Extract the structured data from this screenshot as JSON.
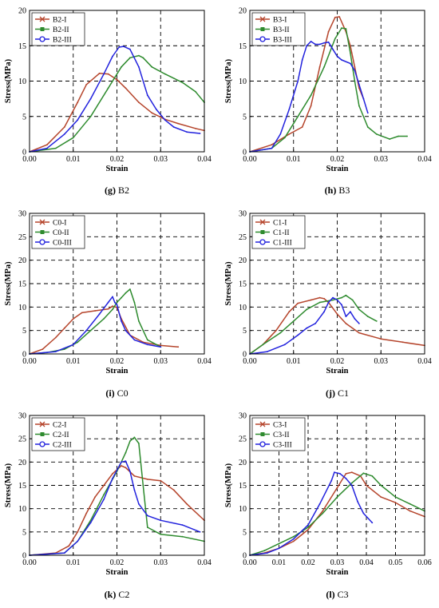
{
  "chart_data": [
    {
      "type": "line",
      "caption_letter": "(g)",
      "caption_name": "B2",
      "xlabel": "Strain",
      "ylabel": "Stress(MPa)",
      "xlim": [
        0,
        0.04
      ],
      "ylim": [
        0,
        20
      ],
      "xticks": [
        "0.00",
        "0.01",
        "0.02",
        "0.03",
        "0.04"
      ],
      "yticks": [
        "0",
        "5",
        "10",
        "15",
        "20"
      ],
      "grid": "dashed",
      "legend": "top-left",
      "series": [
        {
          "name": "B2-I",
          "color": "#b5442b",
          "marker": "x",
          "x": [
            0,
            0.004,
            0.008,
            0.011,
            0.013,
            0.016,
            0.018,
            0.02,
            0.022,
            0.025,
            0.028,
            0.031,
            0.034,
            0.038,
            0.04
          ],
          "y": [
            0,
            1,
            3.5,
            7,
            9.5,
            11.1,
            11,
            10.2,
            9,
            7,
            5.5,
            4.6,
            4,
            3.3,
            3
          ]
        },
        {
          "name": "B2-II",
          "color": "#2e8b2e",
          "marker": "square",
          "x": [
            0,
            0.006,
            0.01,
            0.014,
            0.018,
            0.021,
            0.023,
            0.025,
            0.026,
            0.028,
            0.031,
            0.035,
            0.038,
            0.04
          ],
          "y": [
            0,
            0.5,
            2,
            5,
            9,
            12,
            13.3,
            13.6,
            13.3,
            12,
            11,
            9.8,
            8.5,
            7
          ]
        },
        {
          "name": "B2-III",
          "color": "#2222dd",
          "marker": "circle",
          "x": [
            0,
            0.004,
            0.008,
            0.011,
            0.014,
            0.017,
            0.019,
            0.0205,
            0.0215,
            0.023,
            0.025,
            0.027,
            0.029,
            0.031,
            0.033,
            0.036,
            0.039
          ],
          "y": [
            0,
            0.5,
            2.5,
            4.5,
            7.5,
            11,
            13.5,
            14.8,
            14.9,
            14.5,
            12,
            8,
            6,
            4.5,
            3.5,
            2.8,
            2.6
          ]
        }
      ]
    },
    {
      "type": "line",
      "caption_letter": "(h)",
      "caption_name": "B3",
      "xlabel": "Strain",
      "ylabel": "Stress(MPa)",
      "xlim": [
        0,
        0.04
      ],
      "ylim": [
        0,
        20
      ],
      "xticks": [
        "0.00",
        "0.01",
        "0.02",
        "0.03",
        "0.04"
      ],
      "yticks": [
        "0",
        "5",
        "10",
        "15",
        "20"
      ],
      "grid": "dashed",
      "legend": "top-left",
      "series": [
        {
          "name": "B3-I",
          "color": "#b5442b",
          "marker": "x",
          "x": [
            0,
            0.005,
            0.009,
            0.012,
            0.014,
            0.016,
            0.018,
            0.0195,
            0.0205,
            0.022,
            0.023,
            0.024,
            0.025,
            0.026
          ],
          "y": [
            0,
            1,
            2.5,
            3.5,
            6.5,
            12,
            17,
            19,
            19.1,
            17,
            15,
            12,
            9,
            7.5
          ]
        },
        {
          "name": "B3-II",
          "color": "#2e8b2e",
          "marker": "square",
          "x": [
            0,
            0.005,
            0.008,
            0.011,
            0.014,
            0.017,
            0.0195,
            0.021,
            0.022,
            0.023,
            0.024,
            0.025,
            0.027,
            0.029,
            0.032,
            0.034,
            0.036
          ],
          "y": [
            0,
            0.5,
            2,
            5,
            8,
            12,
            16,
            17.5,
            17.4,
            14,
            10,
            6.5,
            3.5,
            2.5,
            1.8,
            2.2,
            2.2
          ]
        },
        {
          "name": "B3-III",
          "color": "#2222dd",
          "marker": "circle",
          "x": [
            0,
            0.005,
            0.007,
            0.009,
            0.011,
            0.012,
            0.013,
            0.014,
            0.015,
            0.016,
            0.017,
            0.018,
            0.019,
            0.02,
            0.021,
            0.023,
            0.024,
            0.025,
            0.026,
            0.027
          ],
          "y": [
            0,
            0.5,
            2.5,
            6,
            10,
            13,
            15,
            15.6,
            15.2,
            15.2,
            15.4,
            15.5,
            14.5,
            13.5,
            13,
            12.5,
            11.5,
            9.5,
            7.5,
            5.5
          ]
        }
      ]
    },
    {
      "type": "line",
      "caption_letter": "(i)",
      "caption_name": "C0",
      "xlabel": "Strain",
      "ylabel": "Stress(MPa)",
      "xlim": [
        0,
        0.04
      ],
      "ylim": [
        0,
        30
      ],
      "xticks": [
        "0.00",
        "0.01",
        "0.02",
        "0.03",
        "0.04"
      ],
      "yticks": [
        "0",
        "5",
        "10",
        "15",
        "20",
        "25",
        "30"
      ],
      "grid": "dashed",
      "legend": "top-left",
      "series": [
        {
          "name": "C0-I",
          "color": "#b5442b",
          "marker": "x",
          "x": [
            0,
            0.003,
            0.006,
            0.008,
            0.01,
            0.012,
            0.015,
            0.018,
            0.019,
            0.02,
            0.021,
            0.023,
            0.026,
            0.03,
            0.034
          ],
          "y": [
            0,
            1,
            3.5,
            5.5,
            7.5,
            8.8,
            9.2,
            9.6,
            10.2,
            9.9,
            7.5,
            4,
            2.5,
            1.8,
            1.5
          ]
        },
        {
          "name": "C0-II",
          "color": "#2e8b2e",
          "marker": "square",
          "x": [
            0,
            0.004,
            0.008,
            0.011,
            0.014,
            0.017,
            0.019,
            0.02,
            0.021,
            0.022,
            0.023,
            0.024,
            0.025,
            0.027,
            0.03
          ],
          "y": [
            0,
            0.3,
            1,
            2.5,
            5,
            7.5,
            9.5,
            11,
            12,
            13,
            13.8,
            11,
            7,
            3,
            1.5
          ]
        },
        {
          "name": "C0-III",
          "color": "#2222dd",
          "marker": "circle",
          "x": [
            0,
            0.006,
            0.01,
            0.013,
            0.016,
            0.018,
            0.019,
            0.0195,
            0.02,
            0.021,
            0.022,
            0.024,
            0.027,
            0.03
          ],
          "y": [
            0,
            0.5,
            2,
            5,
            8.5,
            11,
            12.2,
            11,
            10.5,
            7,
            5,
            3,
            2,
            1.5
          ]
        }
      ]
    },
    {
      "type": "line",
      "caption_letter": "(j)",
      "caption_name": "C1",
      "xlabel": "Strain",
      "ylabel": "Stress(MPa)",
      "xlim": [
        0,
        0.04
      ],
      "ylim": [
        0,
        30
      ],
      "xticks": [
        "0.00",
        "0.01",
        "0.02",
        "0.03",
        "0.04"
      ],
      "yticks": [
        "0",
        "5",
        "10",
        "15",
        "20",
        "25",
        "30"
      ],
      "grid": "dashed",
      "legend": "top-left",
      "series": [
        {
          "name": "C1-I",
          "color": "#b5442b",
          "marker": "x",
          "x": [
            0,
            0.003,
            0.006,
            0.009,
            0.011,
            0.014,
            0.016,
            0.017,
            0.018,
            0.02,
            0.022,
            0.025,
            0.03,
            0.035,
            0.04
          ],
          "y": [
            0,
            2,
            5,
            9,
            10.8,
            11.5,
            12,
            11.8,
            11,
            8.5,
            6.5,
            4.5,
            3.2,
            2.5,
            1.8
          ]
        },
        {
          "name": "C1-II",
          "color": "#2e8b2e",
          "marker": "square",
          "x": [
            0,
            0.003,
            0.007,
            0.01,
            0.013,
            0.016,
            0.019,
            0.021,
            0.022,
            0.0235,
            0.025,
            0.027,
            0.029
          ],
          "y": [
            0,
            2,
            4.5,
            7,
            9.5,
            11,
            11.5,
            12,
            12.5,
            11.5,
            9.5,
            8,
            7
          ]
        },
        {
          "name": "C1-III",
          "color": "#2222dd",
          "marker": "circle",
          "x": [
            0,
            0.004,
            0.008,
            0.011,
            0.013,
            0.015,
            0.017,
            0.018,
            0.019,
            0.02,
            0.021,
            0.022,
            0.023,
            0.024,
            0.025
          ],
          "y": [
            0,
            0.5,
            2,
            4,
            5.5,
            6.5,
            9,
            11,
            12,
            11.5,
            10.5,
            8,
            9,
            7.5,
            6.5
          ]
        }
      ]
    },
    {
      "type": "line",
      "caption_letter": "(k)",
      "caption_name": "C2",
      "xlabel": "Strain",
      "ylabel": "Stress(MPa)",
      "xlim": [
        0,
        0.04
      ],
      "ylim": [
        0,
        30
      ],
      "xticks": [
        "0.00",
        "0.01",
        "0.02",
        "0.03",
        "0.04"
      ],
      "yticks": [
        "0",
        "5",
        "10",
        "15",
        "20",
        "25",
        "30"
      ],
      "grid": "dashed",
      "legend": "top-left",
      "series": [
        {
          "name": "C2-I",
          "color": "#b5442b",
          "marker": "x",
          "x": [
            0,
            0.006,
            0.009,
            0.011,
            0.013,
            0.015,
            0.017,
            0.019,
            0.021,
            0.022,
            0.024,
            0.027,
            0.03,
            0.033,
            0.036,
            0.04
          ],
          "y": [
            0,
            0.5,
            2,
            5,
            9,
            12.5,
            15,
            17.5,
            19.2,
            18.8,
            17,
            16.3,
            16,
            14,
            11,
            7.5
          ]
        },
        {
          "name": "C2-II",
          "color": "#2e8b2e",
          "marker": "square",
          "x": [
            0,
            0.008,
            0.011,
            0.014,
            0.017,
            0.02,
            0.022,
            0.023,
            0.024,
            0.025,
            0.026,
            0.027,
            0.03,
            0.035,
            0.04
          ],
          "y": [
            0,
            0.5,
            3,
            7.5,
            13,
            18,
            22,
            24.5,
            25.3,
            24,
            15,
            6,
            4.5,
            4,
            3
          ]
        },
        {
          "name": "C2-III",
          "color": "#2222dd",
          "marker": "circle",
          "x": [
            0,
            0.008,
            0.011,
            0.014,
            0.017,
            0.019,
            0.021,
            0.022,
            0.023,
            0.024,
            0.025,
            0.027,
            0.03,
            0.035,
            0.039
          ],
          "y": [
            0,
            0.5,
            3,
            7,
            12,
            16.5,
            20,
            20.2,
            18,
            14,
            11,
            8.5,
            7.5,
            6.5,
            5
          ]
        }
      ]
    },
    {
      "type": "line",
      "caption_letter": "(l)",
      "caption_name": "C3",
      "xlabel": "Strain",
      "ylabel": "Stress(MPa)",
      "xlim": [
        0,
        0.06
      ],
      "ylim": [
        0,
        30
      ],
      "xticks": [
        "0.00",
        "0.01",
        "0.02",
        "0.03",
        "0.04",
        "0.05",
        "0.06"
      ],
      "yticks": [
        "0",
        "5",
        "10",
        "15",
        "20",
        "25",
        "30"
      ],
      "grid": "dashed",
      "legend": "top-left",
      "series": [
        {
          "name": "C3-I",
          "color": "#b5442b",
          "marker": "x",
          "x": [
            0,
            0.005,
            0.01,
            0.015,
            0.02,
            0.025,
            0.03,
            0.033,
            0.035,
            0.038,
            0.04,
            0.045,
            0.05,
            0.055,
            0.06
          ],
          "y": [
            0,
            0.5,
            1.5,
            3,
            5.5,
            9.5,
            14.5,
            17.5,
            17.8,
            17,
            15,
            12.5,
            11.3,
            9.5,
            8.3
          ]
        },
        {
          "name": "C3-II",
          "color": "#2e8b2e",
          "marker": "square",
          "x": [
            0,
            0.005,
            0.01,
            0.015,
            0.02,
            0.025,
            0.03,
            0.035,
            0.039,
            0.042,
            0.045,
            0.05,
            0.055,
            0.06
          ],
          "y": [
            0,
            1,
            2.5,
            4,
            6,
            9,
            12.5,
            15.5,
            17.6,
            17,
            15,
            12.5,
            11,
            9.5
          ]
        },
        {
          "name": "C3-III",
          "color": "#2222dd",
          "marker": "circle",
          "x": [
            0,
            0.006,
            0.01,
            0.015,
            0.02,
            0.024,
            0.028,
            0.029,
            0.031,
            0.033,
            0.035,
            0.037,
            0.039,
            0.042
          ],
          "y": [
            0,
            0.5,
            1.5,
            3.5,
            6.5,
            11,
            16,
            17.8,
            17.5,
            16.5,
            15,
            11.5,
            9,
            7
          ]
        }
      ]
    }
  ]
}
